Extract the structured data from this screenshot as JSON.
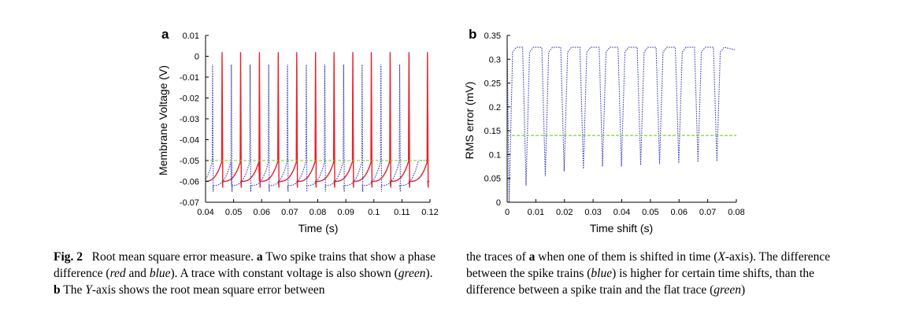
{
  "chart_data": [
    {
      "panel": "a",
      "type": "line",
      "xlabel": "Time (s)",
      "ylabel": "Membrane Voltage (V)",
      "xlim": [
        0.04,
        0.12
      ],
      "ylim": [
        -0.07,
        0.01
      ],
      "xticks": [
        "0.04",
        "0.05",
        "0.06",
        "0.07",
        "0.08",
        "0.09",
        "0.1",
        "0.11",
        "0.12"
      ],
      "yticks": [
        "0.01",
        "0",
        "-0.01",
        "-0.02",
        "-0.03",
        "-0.04",
        "-0.05",
        "-0.06",
        "-0.07"
      ],
      "series": [
        {
          "color": "#e8202a",
          "style": "solid",
          "baseline": -0.06,
          "threshold": -0.05,
          "peak": 0.002,
          "spike_times": [
            0.0459,
            0.0525,
            0.0592,
            0.0659,
            0.0725,
            0.0792,
            0.0858,
            0.0925,
            0.0991,
            0.1058,
            0.1125,
            0.1191
          ]
        },
        {
          "color": "#3b3fb5",
          "style": "dotted",
          "baseline": -0.062,
          "threshold": -0.05,
          "peak": -0.004,
          "spike_times": [
            0.0425,
            0.0492,
            0.0559,
            0.0625,
            0.0692,
            0.0759,
            0.0825,
            0.0892,
            0.0958,
            0.1025,
            0.1092
          ]
        },
        {
          "color": "#7bc82c",
          "style": "dashed",
          "constant": -0.05
        }
      ]
    },
    {
      "panel": "b",
      "type": "line",
      "xlabel": "Time shift (s)",
      "ylabel": "RMS error (mV)",
      "xlim": [
        0,
        0.08
      ],
      "ylim": [
        0,
        0.35
      ],
      "xticks": [
        "0",
        "0.01",
        "0.02",
        "0.03",
        "0.04",
        "0.05",
        "0.06",
        "0.07",
        "0.08"
      ],
      "yticks": [
        "0.35",
        "0.3",
        "0.25",
        "0.2",
        "0.15",
        "0.1",
        "0.05",
        "0"
      ],
      "series": [
        {
          "color": "#3b3fb5",
          "style": "dotted",
          "plateau": 0.325,
          "dips": [
            [
              0.0007,
              0.0
            ],
            [
              0.0066,
              0.035
            ],
            [
              0.0133,
              0.055
            ],
            [
              0.0199,
              0.065
            ],
            [
              0.0266,
              0.07
            ],
            [
              0.0333,
              0.075
            ],
            [
              0.0399,
              0.075
            ],
            [
              0.0466,
              0.078
            ],
            [
              0.0532,
              0.08
            ],
            [
              0.0599,
              0.082
            ],
            [
              0.0666,
              0.084
            ],
            [
              0.0732,
              0.086
            ]
          ],
          "end": [
            0.0795,
            0.32
          ]
        },
        {
          "color": "#7bc82c",
          "style": "dashed",
          "constant": 0.14
        }
      ]
    }
  ],
  "caption": {
    "fig_label": "Fig. 2",
    "text1": "Root mean square error measure.",
    "a": "a",
    "text2": "Two spike trains that show a phase difference (",
    "red": "red",
    "and": "and",
    "blue": "blue",
    "text3": "). A trace with constant voltage is also shown (",
    "green": "green",
    "text4": ").",
    "b": "b",
    "the": "The",
    "y": "Y",
    "text5": "-axis shows the root mean square error between the traces of",
    "a2": "a",
    "text6": "when one of them is shifted in time (",
    "x": "X",
    "text7": "-axis). The difference between the spike trains (",
    "blue2": "blue",
    "text8": ") is higher for certain time shifts, than the difference between a spike train and the flat trace (",
    "green2": "green",
    "text9": ")"
  }
}
